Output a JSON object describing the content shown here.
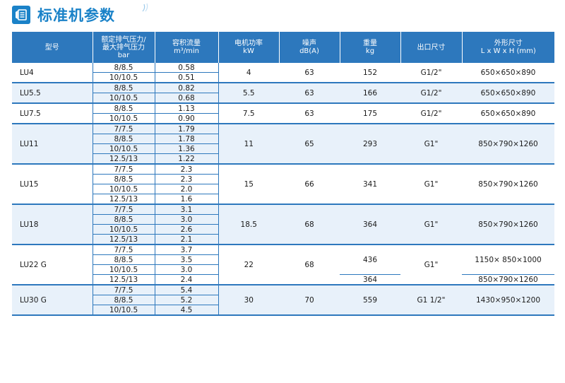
{
  "title": "标准机参数",
  "colors": {
    "accent": "#1a82c8",
    "header_bg": "#2d78bd",
    "row_shade": "#e8f1fa"
  },
  "headers": [
    [
      "型号"
    ],
    [
      "额定排气压力/",
      "最大排气压力",
      "bar"
    ],
    [
      "容积流量",
      "m³/min"
    ],
    [
      "电机功率",
      "kW"
    ],
    [
      "噪声",
      "dB(A)"
    ],
    [
      "重量",
      "kg"
    ],
    [
      "出口尺寸"
    ],
    [
      "外形尺寸",
      "L x W x H (mm)"
    ]
  ],
  "models": [
    {
      "model": "LU4",
      "rows": [
        [
          "8/8.5",
          "0.58"
        ],
        [
          "10/10.5",
          "0.51"
        ]
      ],
      "power": "4",
      "noise": "63",
      "weight": [
        "152"
      ],
      "outlet": "G1/2\"",
      "dims": [
        "650×650×890"
      ]
    },
    {
      "model": "LU5.5",
      "rows": [
        [
          "8/8.5",
          "0.82"
        ],
        [
          "10/10.5",
          "0.68"
        ]
      ],
      "power": "5.5",
      "noise": "63",
      "weight": [
        "166"
      ],
      "outlet": "G1/2\"",
      "dims": [
        "650×650×890"
      ]
    },
    {
      "model": "LU7.5",
      "rows": [
        [
          "8/8.5",
          "1.13"
        ],
        [
          "10/10.5",
          "0.90"
        ]
      ],
      "power": "7.5",
      "noise": "63",
      "weight": [
        "175"
      ],
      "outlet": "G1/2\"",
      "dims": [
        "650×650×890"
      ]
    },
    {
      "model": "LU11",
      "rows": [
        [
          "7/7.5",
          "1.79"
        ],
        [
          "8/8.5",
          "1.78"
        ],
        [
          "10/10.5",
          "1.36"
        ],
        [
          "12.5/13",
          "1.22"
        ]
      ],
      "power": "11",
      "noise": "65",
      "weight": [
        "293"
      ],
      "outlet": "G1\"",
      "dims": [
        "850×790×1260"
      ]
    },
    {
      "model": "LU15",
      "rows": [
        [
          "7/7.5",
          "2.3"
        ],
        [
          "8/8.5",
          "2.3"
        ],
        [
          "10/10.5",
          "2.0"
        ],
        [
          "12.5/13",
          "1.6"
        ]
      ],
      "power": "15",
      "noise": "66",
      "weight": [
        "341"
      ],
      "outlet": "G1\"",
      "dims": [
        "850×790×1260"
      ]
    },
    {
      "model": "LU18",
      "rows": [
        [
          "7/7.5",
          "3.1"
        ],
        [
          "8/8.5",
          "3.0"
        ],
        [
          "10/10.5",
          "2.6"
        ],
        [
          "12.5/13",
          "2.1"
        ]
      ],
      "power": "18.5",
      "noise": "68",
      "weight": [
        "364"
      ],
      "outlet": "G1\"",
      "dims": [
        "850×790×1260"
      ]
    },
    {
      "model": "LU22 G",
      "rows": [
        [
          "7/7.5",
          "3.7"
        ],
        [
          "8/8.5",
          "3.5"
        ],
        [
          "10/10.5",
          "3.0"
        ],
        [
          "12.5/13",
          "2.4"
        ]
      ],
      "power": "22",
      "noise": "68",
      "weight": [
        "436",
        "364"
      ],
      "outlet": "G1\"",
      "dims": [
        "1150× 850×1000",
        "850×790×1260"
      ]
    },
    {
      "model": "LU30 G",
      "rows": [
        [
          "7/7.5",
          "5.4"
        ],
        [
          "8/8.5",
          "5.2"
        ],
        [
          "10/10.5",
          "4.5"
        ]
      ],
      "power": "30",
      "noise": "70",
      "weight": [
        "559"
      ],
      "outlet": "G1 1/2\"",
      "dims": [
        "1430×950×1200"
      ]
    }
  ]
}
